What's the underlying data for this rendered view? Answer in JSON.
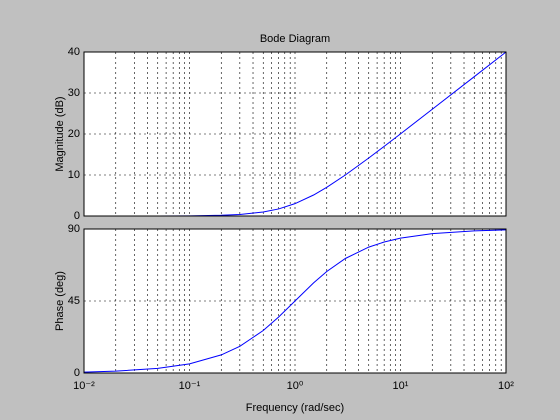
{
  "chart_data": [
    {
      "type": "line",
      "title": "Bode Diagram",
      "y_label": "Magnitude (dB)",
      "x": [
        0.01,
        0.02,
        0.05,
        0.1,
        0.2,
        0.3,
        0.5,
        0.7,
        1,
        1.5,
        2,
        3,
        5,
        7,
        10,
        20,
        50,
        100
      ],
      "series": [
        {
          "color": "#0000ff",
          "values": [
            0,
            0,
            0.01,
            0.04,
            0.17,
            0.37,
            0.97,
            1.72,
            3.01,
            5.12,
            6.99,
            10,
            14.15,
            16.99,
            20.04,
            26.03,
            33.98,
            40
          ]
        }
      ],
      "xlim": [
        0.01,
        100
      ],
      "xticks": [
        0.01,
        0.1,
        1,
        10,
        100
      ],
      "xminorticks": [
        0.02,
        0.03,
        0.04,
        0.05,
        0.06,
        0.07,
        0.08,
        0.09,
        0.2,
        0.3,
        0.4,
        0.5,
        0.6,
        0.7,
        0.8,
        0.9,
        2,
        3,
        4,
        5,
        6,
        7,
        8,
        9,
        20,
        30,
        40,
        50,
        60,
        70,
        80,
        90
      ],
      "ylim": [
        0,
        40
      ],
      "yticks": [
        0,
        10,
        20,
        30,
        40
      ],
      "log_x": true,
      "grid": true
    },
    {
      "type": "line",
      "x_label": "Frequency  (rad/sec)",
      "y_label": "Phase (deg)",
      "x": [
        0.01,
        0.02,
        0.05,
        0.1,
        0.2,
        0.3,
        0.5,
        0.7,
        1,
        1.5,
        2,
        3,
        5,
        7,
        10,
        20,
        50,
        100
      ],
      "series": [
        {
          "color": "#0000ff",
          "values": [
            0.57,
            1.15,
            2.86,
            5.71,
            11.31,
            16.7,
            26.57,
            34.99,
            45,
            56.31,
            63.43,
            71.57,
            78.69,
            81.87,
            84.29,
            87.14,
            88.85,
            89.43
          ]
        }
      ],
      "xlim": [
        0.01,
        100
      ],
      "xticks": [
        {
          "value": 0.01,
          "label": "10⁻²"
        },
        {
          "value": 0.1,
          "label": "10⁻¹"
        },
        {
          "value": 1,
          "label": "10⁰"
        },
        {
          "value": 10,
          "label": "10¹"
        },
        {
          "value": 100,
          "label": "10²"
        }
      ],
      "xminorticks": [
        0.02,
        0.03,
        0.04,
        0.05,
        0.06,
        0.07,
        0.08,
        0.09,
        0.2,
        0.3,
        0.4,
        0.5,
        0.6,
        0.7,
        0.8,
        0.9,
        2,
        3,
        4,
        5,
        6,
        7,
        8,
        9,
        20,
        30,
        40,
        50,
        60,
        70,
        80,
        90
      ],
      "ylim": [
        0,
        90
      ],
      "yticks": [
        0,
        45,
        90
      ],
      "log_x": true,
      "grid": true
    }
  ]
}
